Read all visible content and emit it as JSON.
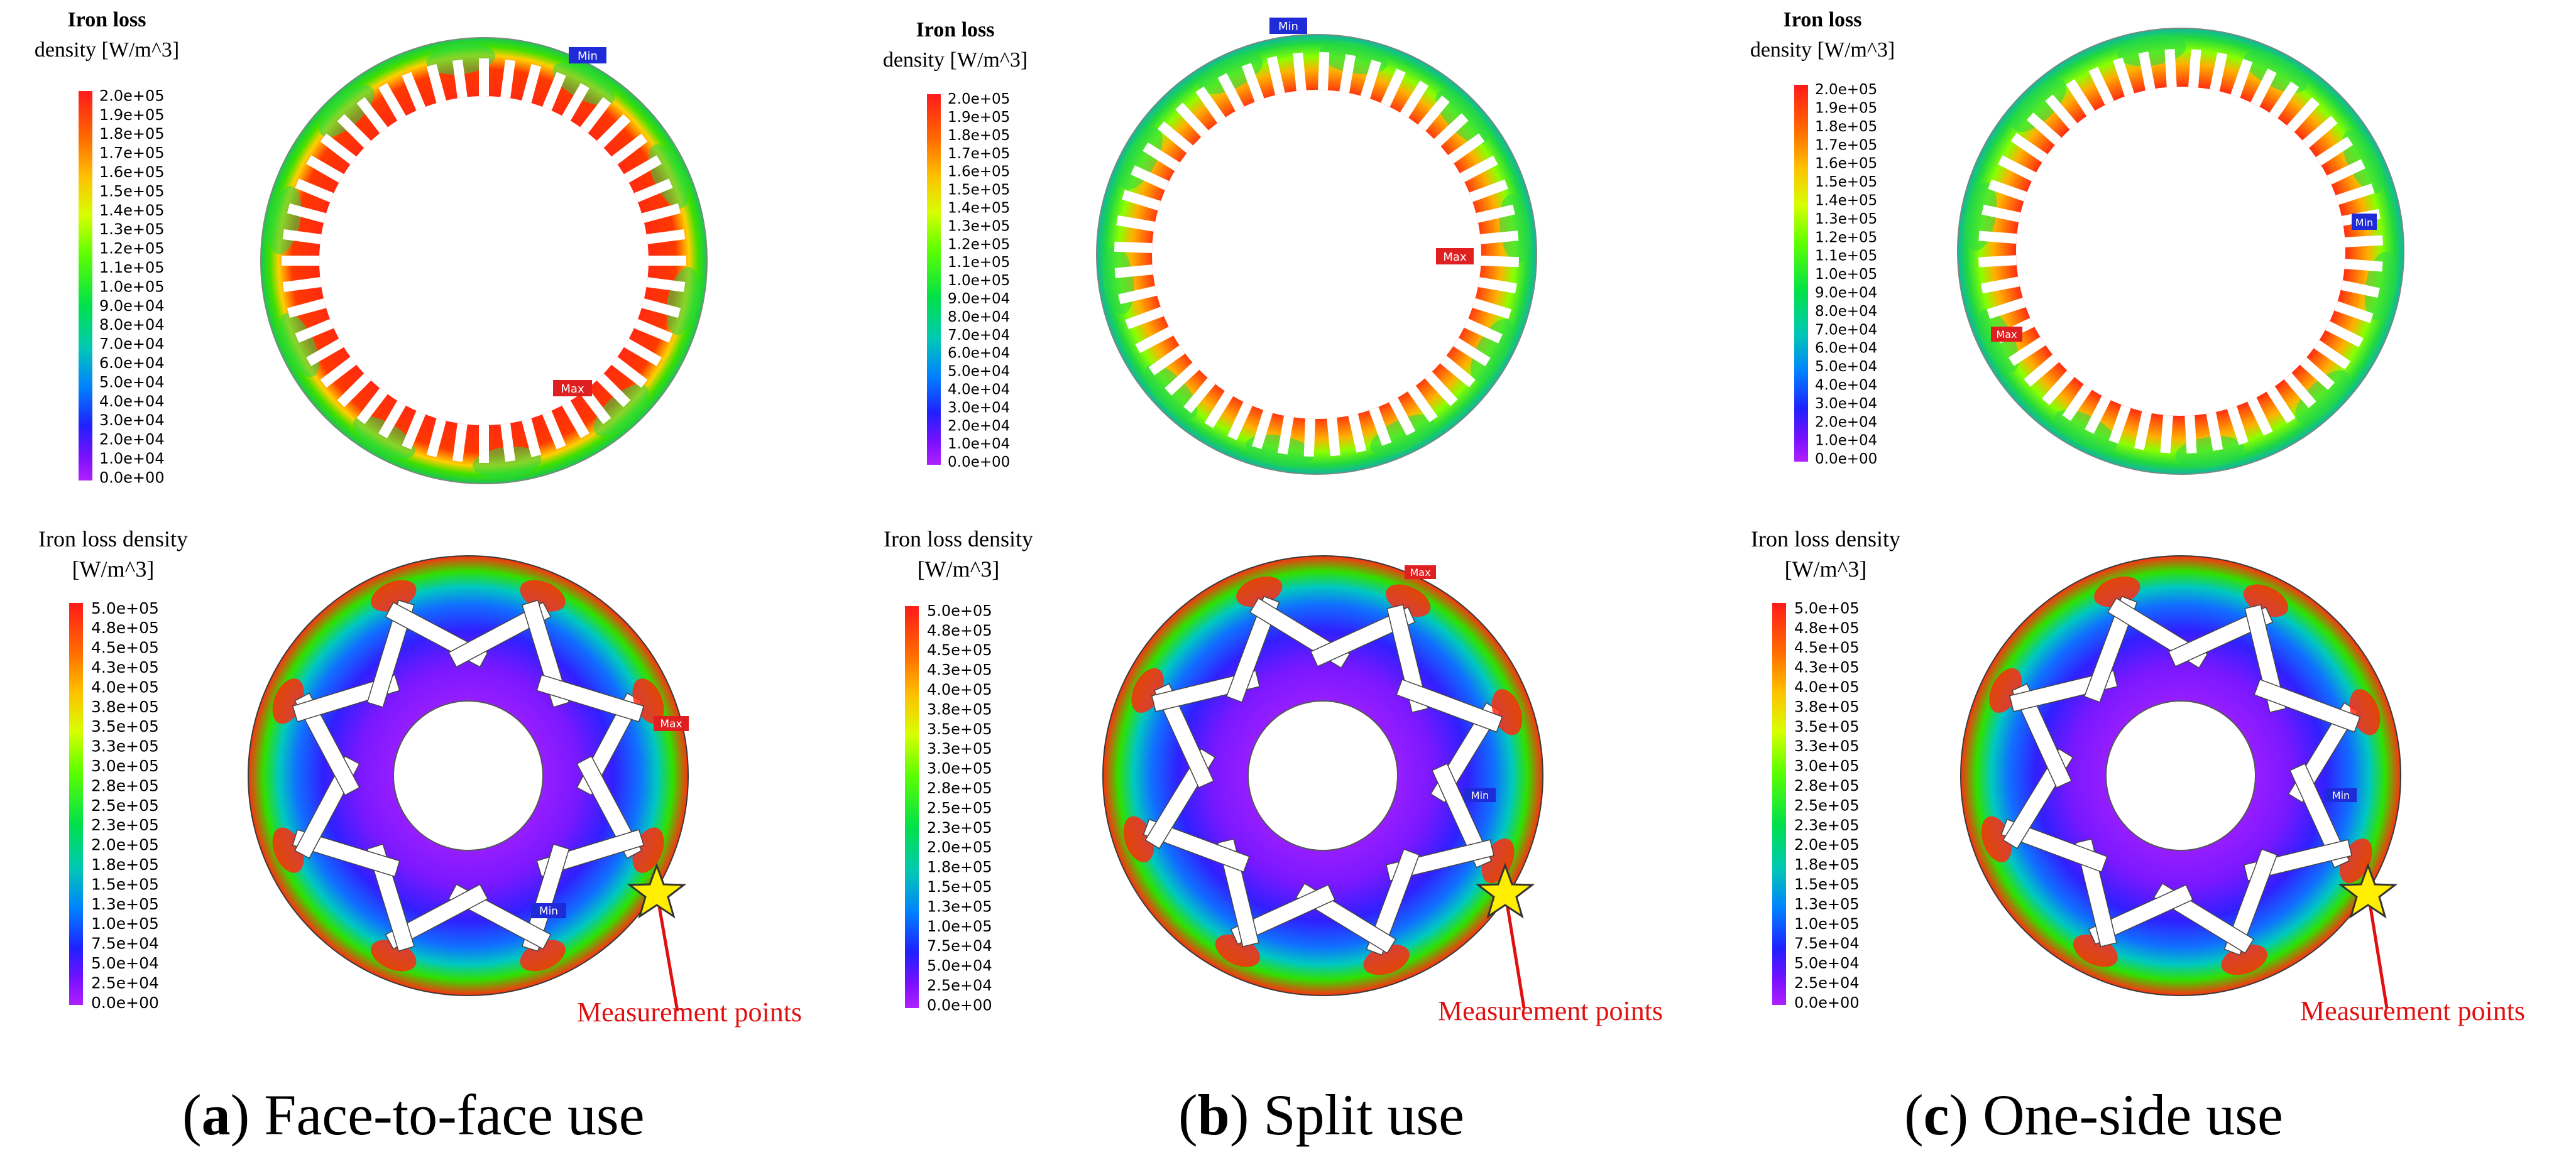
{
  "legends": {
    "stator": {
      "title_line1": "Iron loss",
      "title_line2": "density [W/m^3]",
      "ticks": [
        "2.0e+05",
        "1.9e+05",
        "1.8e+05",
        "1.7e+05",
        "1.6e+05",
        "1.5e+05",
        "1.4e+05",
        "1.3e+05",
        "1.2e+05",
        "1.1e+05",
        "1.0e+05",
        "9.0e+04",
        "8.0e+04",
        "7.0e+04",
        "6.0e+04",
        "5.0e+04",
        "4.0e+04",
        "3.0e+04",
        "2.0e+04",
        "1.0e+04",
        "0.0e+00"
      ]
    },
    "rotor": {
      "title_line1": "Iron loss density",
      "title_line2": "[W/m^3]",
      "ticks": [
        "5.0e+05",
        "4.8e+05",
        "4.5e+05",
        "4.3e+05",
        "4.0e+05",
        "3.8e+05",
        "3.5e+05",
        "3.3e+05",
        "3.0e+05",
        "2.8e+05",
        "2.5e+05",
        "2.3e+05",
        "2.0e+05",
        "1.8e+05",
        "1.5e+05",
        "1.3e+05",
        "1.0e+05",
        "7.5e+04",
        "5.0e+04",
        "2.5e+04",
        "0.0e+00"
      ]
    }
  },
  "markers": {
    "max": "Max",
    "min": "Min"
  },
  "measurement_label": "Measurement points",
  "colors": {
    "scale": [
      "#ff1a1a",
      "#ff6a00",
      "#ffc000",
      "#d7ff00",
      "#5dff00",
      "#00e14a",
      "#00c8b4",
      "#0082ff",
      "#2020ff",
      "#7a10ff",
      "#b020ff"
    ],
    "star": "#ffee00",
    "annotation": "#e01010"
  },
  "panels": [
    {
      "letter": "a",
      "title": ") Face-to-face use",
      "open": "("
    },
    {
      "letter": "b",
      "title": ") Split use",
      "open": "("
    },
    {
      "letter": "c",
      "title": ") One-side use",
      "open": "("
    }
  ]
}
